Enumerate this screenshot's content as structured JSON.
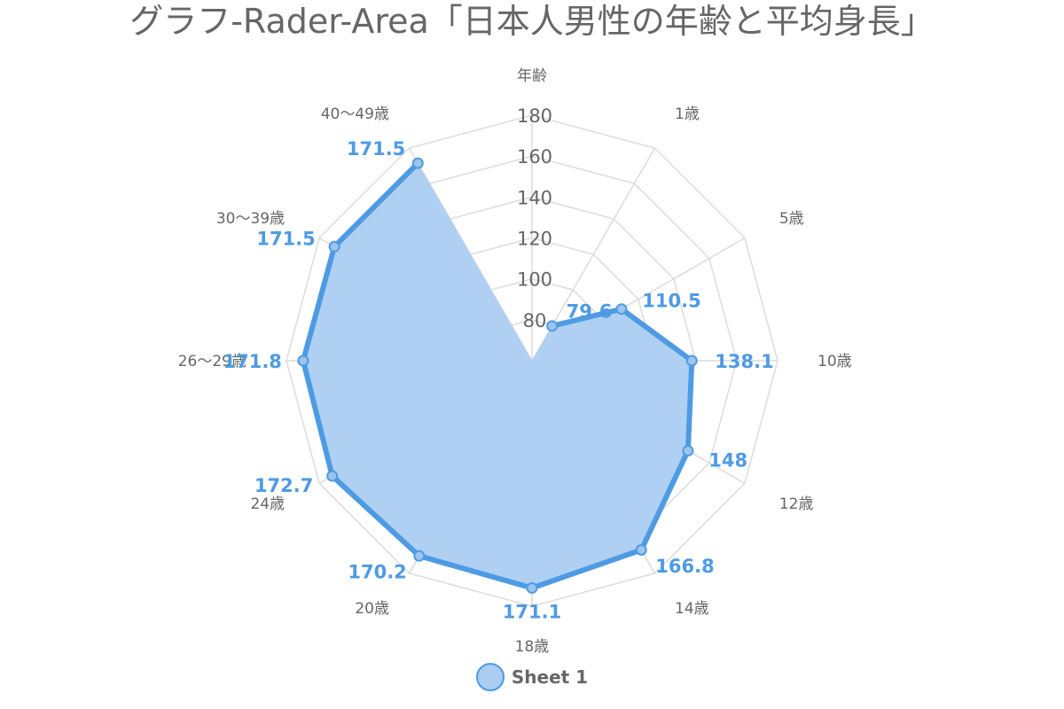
{
  "chart_data": {
    "type": "radar-area",
    "title": "グラフ-Rader-Area「日本人男性の年齢と平均身長」",
    "categories": [
      "年齢",
      "1歳",
      "5歳",
      "10歳",
      "12歳",
      "14歳",
      "18歳",
      "20歳",
      "24歳",
      "26〜29歳",
      "30〜39歳",
      "40〜49歳"
    ],
    "series": [
      {
        "name": "Sheet 1",
        "values": [
          null,
          79.6,
          110.5,
          138.1,
          148,
          166.8,
          171.1,
          170.2,
          172.7,
          171.8,
          171.5,
          171.5
        ],
        "labels": [
          "",
          "79.6",
          "110.5",
          "138.1",
          "148",
          "166.8",
          "171.1",
          "170.2",
          "172.7",
          "171.8",
          "171.5",
          "171.5"
        ]
      }
    ],
    "r_axis": {
      "min": 60,
      "max": 180,
      "tick_labels": [
        "80",
        "100",
        "120",
        "140",
        "160",
        "180"
      ]
    },
    "grid": true,
    "legend_position": "bottom",
    "colors": {
      "line": "#4e9be3",
      "fill": "#abcdf2",
      "point_fill": "#9dc4ee",
      "data_label": "#4e9be3",
      "grid": "#dcdcdc",
      "text": "#666666"
    }
  }
}
